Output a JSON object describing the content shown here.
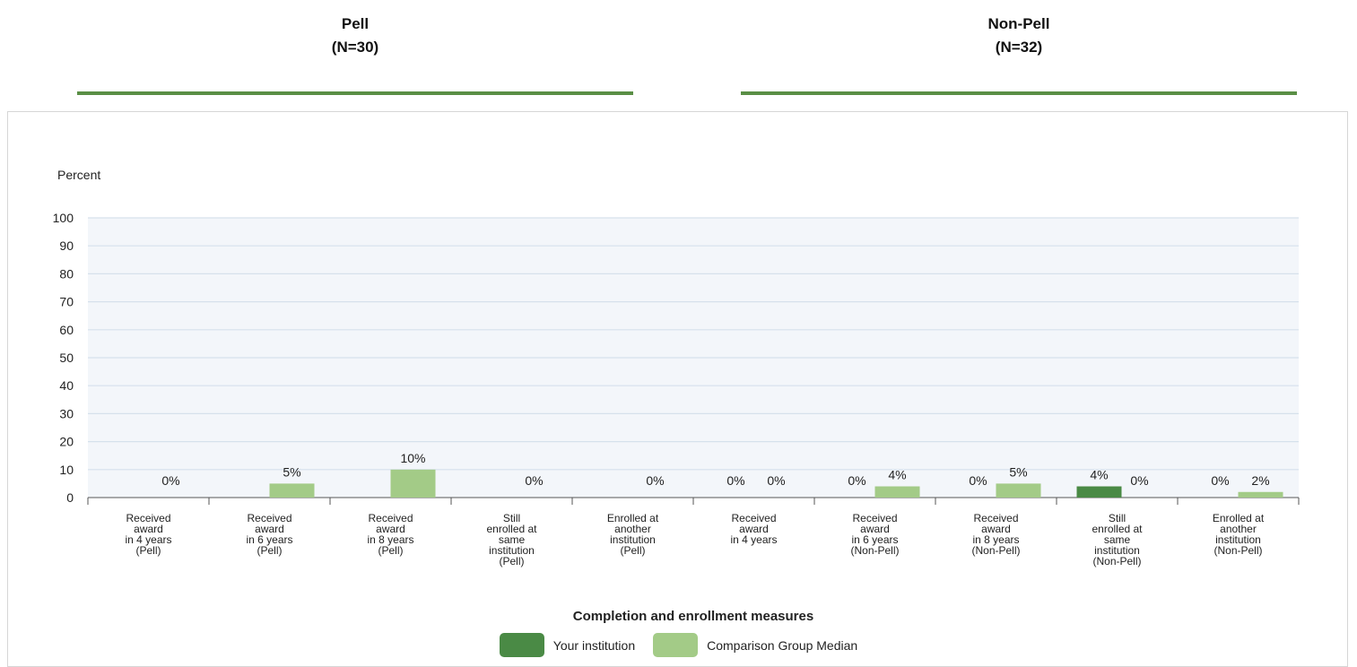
{
  "headers": {
    "pell": {
      "title": "Pell",
      "count": "(N=30)"
    },
    "non_pell": {
      "title": "Non-Pell",
      "count": "(N=32)"
    }
  },
  "colors": {
    "your_institution": "#4a8a45",
    "comparison_median": "#a3cb87",
    "underline": "#5a8f45",
    "plot_background": "#f3f6fa",
    "gridline": "#d6e1ec"
  },
  "chart_data": {
    "type": "bar",
    "ylabel": "Percent",
    "xlabel": "Completion and enrollment measures",
    "ylim": [
      0,
      100
    ],
    "yticks": [
      0,
      10,
      20,
      30,
      40,
      50,
      60,
      70,
      80,
      90,
      100
    ],
    "grid": true,
    "legend_position": "bottom-center",
    "categories": [
      [
        "Received",
        "award",
        "in 4 years",
        "(Pell)"
      ],
      [
        "Received",
        "award",
        "in 6 years",
        "(Pell)"
      ],
      [
        "Received",
        "award",
        "in 8 years",
        "(Pell)"
      ],
      [
        "Still",
        "enrolled at",
        "same",
        "institution",
        "(Pell)"
      ],
      [
        "Enrolled at",
        "another",
        "institution",
        "(Pell)"
      ],
      [
        "Received",
        "award",
        "in 4 years"
      ],
      [
        "Received",
        "award",
        "in 6 years",
        "(Non-Pell)"
      ],
      [
        "Received",
        "award",
        "in 8 years",
        "(Non-Pell)"
      ],
      [
        "Still",
        "enrolled at",
        "same",
        "institution",
        "(Non-Pell)"
      ],
      [
        "Enrolled at",
        "another",
        "institution",
        "(Non-Pell)"
      ]
    ],
    "series": [
      {
        "name": "Your institution",
        "values": [
          null,
          null,
          null,
          null,
          null,
          0,
          0,
          0,
          4,
          0
        ],
        "labels": [
          "",
          "",
          "",
          "",
          "",
          "0%",
          "0%",
          "0%",
          "4%",
          "0%"
        ]
      },
      {
        "name": "Comparison Group Median",
        "values": [
          0,
          5,
          10,
          0,
          0,
          0,
          4,
          5,
          0,
          2
        ],
        "labels": [
          "0%",
          "5%",
          "10%",
          "0%",
          "0%",
          "0%",
          "4%",
          "5%",
          "0%",
          "2%"
        ]
      }
    ]
  }
}
